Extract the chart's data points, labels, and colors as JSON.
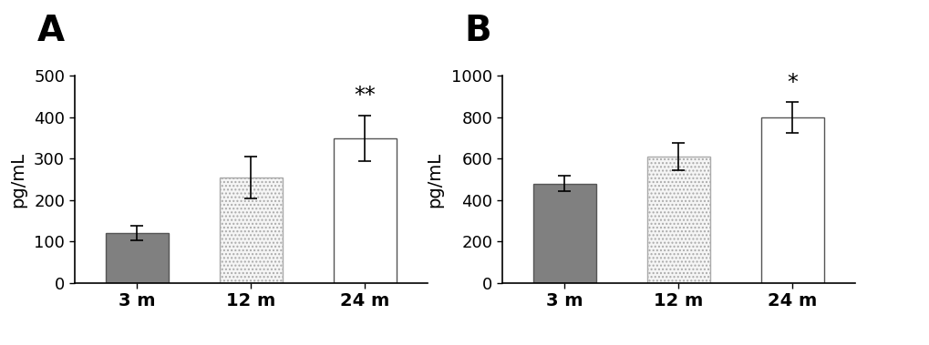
{
  "panel_A": {
    "label": "A",
    "categories": [
      "3 m",
      "12 m",
      "24 m"
    ],
    "values": [
      120,
      255,
      350
    ],
    "errors": [
      18,
      50,
      55
    ],
    "bar_colors": [
      "#808080",
      "#f5f5f5",
      "#ffffff"
    ],
    "bar_hatches": [
      null,
      "....",
      null
    ],
    "bar_edgecolors": [
      "#555555",
      "#aaaaaa",
      "#555555"
    ],
    "ylabel": "pg/mL",
    "ylim": [
      0,
      500
    ],
    "yticks": [
      0,
      100,
      200,
      300,
      400,
      500
    ],
    "significance": {
      "bar_index": 2,
      "text": "**"
    }
  },
  "panel_B": {
    "label": "B",
    "categories": [
      "3 m",
      "12 m",
      "24 m"
    ],
    "values": [
      480,
      610,
      800
    ],
    "errors": [
      38,
      65,
      75
    ],
    "bar_colors": [
      "#808080",
      "#f5f5f5",
      "#ffffff"
    ],
    "bar_hatches": [
      null,
      "....",
      null
    ],
    "bar_edgecolors": [
      "#555555",
      "#aaaaaa",
      "#555555"
    ],
    "ylabel": "pg/mL",
    "ylim": [
      0,
      1000
    ],
    "yticks": [
      0,
      200,
      400,
      600,
      800,
      1000
    ],
    "significance": {
      "bar_index": 2,
      "text": "*"
    }
  },
  "background_color": "#ffffff",
  "bar_width": 0.55,
  "panel_label_fontsize": 28,
  "tick_fontsize": 13,
  "ylabel_fontsize": 14,
  "sig_fontsize": 17,
  "xtick_fontsize": 14
}
